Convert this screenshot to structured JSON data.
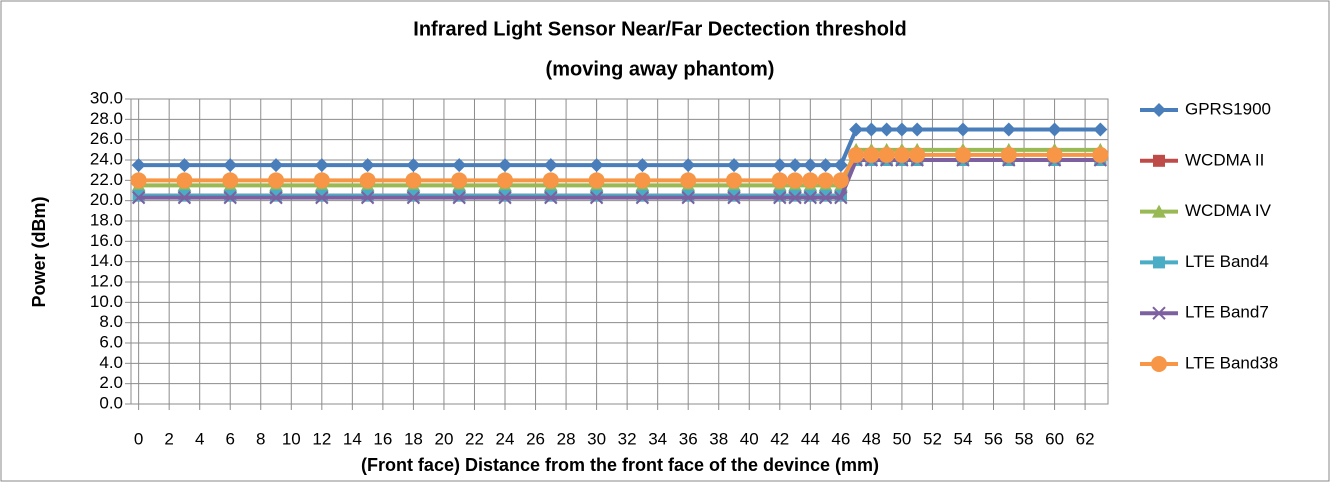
{
  "chart_data": {
    "type": "line",
    "title": [
      "Infrared Light Sensor Near/Far Dectection threshold",
      "(moving away phantom)"
    ],
    "x_label": "(Front face) Distance from the front face of the devince (mm)",
    "y_label": "Power (dBm)",
    "x": [
      0,
      3,
      6,
      9,
      12,
      15,
      18,
      21,
      24,
      27,
      30,
      33,
      36,
      39,
      42,
      43,
      44,
      45,
      46,
      47,
      48,
      49,
      50,
      51,
      54,
      57,
      60,
      63
    ],
    "xlim": [
      -0.5,
      63.5
    ],
    "xticks": [
      0,
      2,
      4,
      6,
      8,
      10,
      12,
      14,
      16,
      18,
      20,
      22,
      24,
      26,
      28,
      30,
      32,
      34,
      36,
      38,
      40,
      42,
      44,
      46,
      48,
      50,
      52,
      54,
      56,
      58,
      60,
      62
    ],
    "ylim": [
      0,
      30
    ],
    "yticks": [
      {
        "value": 0,
        "label": "0.0"
      },
      {
        "value": 2,
        "label": "2.0"
      },
      {
        "value": 4,
        "label": "4.0"
      },
      {
        "value": 6,
        "label": "6.0"
      },
      {
        "value": 8,
        "label": "8.0"
      },
      {
        "value": 10,
        "label": "10.0"
      },
      {
        "value": 12,
        "label": "12.0"
      },
      {
        "value": 14,
        "label": "14.0"
      },
      {
        "value": 16,
        "label": "16.0"
      },
      {
        "value": 18,
        "label": "18.0"
      },
      {
        "value": 20,
        "label": "20.0"
      },
      {
        "value": 22,
        "label": "22.0"
      },
      {
        "value": 24,
        "label": "24.0"
      },
      {
        "value": 26,
        "label": "26.0"
      },
      {
        "value": 28,
        "label": "28.0"
      },
      {
        "value": 30,
        "label": "30.0"
      }
    ],
    "grid": true,
    "legend": "right",
    "series": [
      {
        "name": "GPRS1900",
        "color": "#4a7ebb",
        "marker": "diamond",
        "values": [
          23.5,
          23.5,
          23.5,
          23.5,
          23.5,
          23.5,
          23.5,
          23.5,
          23.5,
          23.5,
          23.5,
          23.5,
          23.5,
          23.5,
          23.5,
          23.5,
          23.5,
          23.5,
          23.5,
          27,
          27,
          27,
          27,
          27,
          27,
          27,
          27,
          27
        ]
      },
      {
        "name": "WCDMA II",
        "color": "#be4b48",
        "marker": "square",
        "values": [
          20.5,
          20.5,
          20.5,
          20.5,
          20.5,
          20.5,
          20.5,
          20.5,
          20.5,
          20.5,
          20.5,
          20.5,
          20.5,
          20.5,
          20.5,
          20.5,
          20.5,
          20.5,
          20.5,
          24,
          24,
          24,
          24,
          24,
          24,
          24,
          24,
          24
        ]
      },
      {
        "name": "WCDMA IV",
        "color": "#98b954",
        "marker": "triangle",
        "values": [
          21.5,
          21.5,
          21.5,
          21.5,
          21.5,
          21.5,
          21.5,
          21.5,
          21.5,
          21.5,
          21.5,
          21.5,
          21.5,
          21.5,
          21.5,
          21.5,
          21.5,
          21.5,
          21.5,
          25,
          25,
          25,
          25,
          25,
          25,
          25,
          25,
          25
        ]
      },
      {
        "name": "LTE Band4",
        "color": "#4bacc6",
        "marker": "square",
        "values": [
          20.5,
          20.5,
          20.5,
          20.5,
          20.5,
          20.5,
          20.5,
          20.5,
          20.5,
          20.5,
          20.5,
          20.5,
          20.5,
          20.5,
          20.5,
          20.5,
          20.5,
          20.5,
          20.5,
          24,
          24,
          24,
          24,
          24,
          24,
          24,
          24,
          24
        ]
      },
      {
        "name": "LTE Band7",
        "color": "#7d60a0",
        "marker": "x",
        "values": [
          20.3,
          20.3,
          20.3,
          20.3,
          20.3,
          20.3,
          20.3,
          20.3,
          20.3,
          20.3,
          20.3,
          20.3,
          20.3,
          20.3,
          20.3,
          20.3,
          20.3,
          20.3,
          20.3,
          24,
          24,
          24,
          24,
          24,
          24,
          24,
          24,
          24
        ]
      },
      {
        "name": "LTE Band38",
        "color": "#f79646",
        "marker": "circle",
        "values": [
          22,
          22,
          22,
          22,
          22,
          22,
          22,
          22,
          22,
          22,
          22,
          22,
          22,
          22,
          22,
          22,
          22,
          22,
          22,
          24.5,
          24.5,
          24.5,
          24.5,
          24.5,
          24.5,
          24.5,
          24.5,
          24.5
        ]
      }
    ]
  }
}
